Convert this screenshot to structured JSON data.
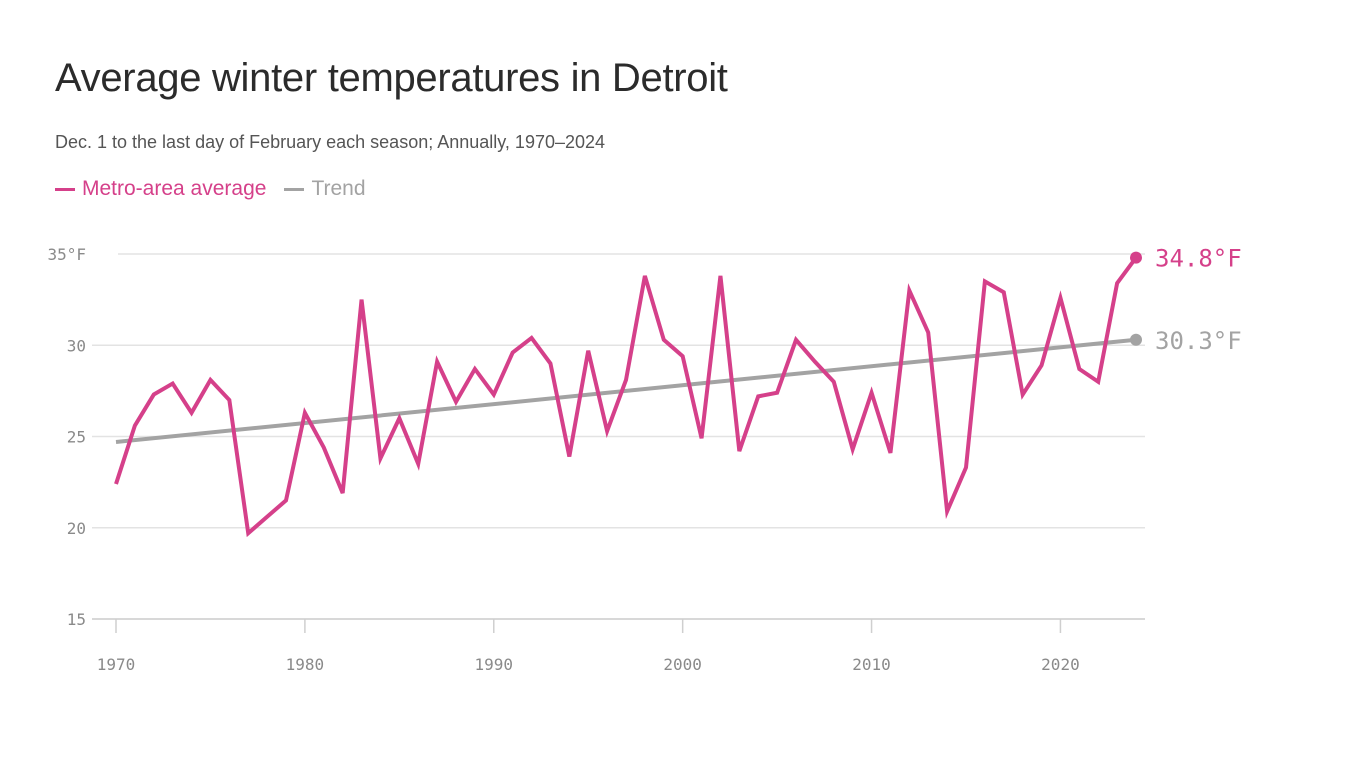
{
  "title": "Average winter temperatures in Detroit",
  "subtitle": "Dec. 1 to the last day of February each season; Annually, 1970–2024",
  "chart_data": {
    "type": "line",
    "title": "Average winter temperatures in Detroit",
    "subtitle": "Dec. 1 to the last day of February each season; Annually, 1970–2024",
    "xlim": [
      1970,
      2024
    ],
    "ylim": [
      15,
      35
    ],
    "grid": true,
    "legend_placement": "top-left",
    "x_ticks": [
      "1970",
      "1980",
      "1990",
      "2000",
      "2010",
      "2020"
    ],
    "y_ticks": [
      "35°F",
      "30",
      "25",
      "20",
      "15"
    ],
    "x": [
      1970,
      1971,
      1972,
      1973,
      1974,
      1975,
      1976,
      1977,
      1978,
      1979,
      1980,
      1981,
      1982,
      1983,
      1984,
      1985,
      1986,
      1987,
      1988,
      1989,
      1990,
      1991,
      1992,
      1993,
      1994,
      1995,
      1996,
      1997,
      1998,
      1999,
      2000,
      2001,
      2002,
      2003,
      2004,
      2005,
      2006,
      2007,
      2008,
      2009,
      2010,
      2011,
      2012,
      2013,
      2014,
      2015,
      2016,
      2017,
      2018,
      2019,
      2020,
      2021,
      2022,
      2023,
      2024
    ],
    "series": [
      {
        "name": "Metro-area average",
        "color": "#d5408a",
        "values": [
          22.4,
          25.6,
          27.3,
          27.9,
          26.3,
          28.1,
          27.0,
          19.7,
          20.6,
          21.5,
          26.3,
          24.4,
          21.9,
          32.5,
          23.8,
          26.0,
          23.5,
          29.1,
          26.9,
          28.7,
          27.3,
          29.6,
          30.4,
          29.0,
          23.9,
          29.7,
          25.3,
          28.1,
          33.8,
          30.3,
          29.4,
          24.9,
          33.8,
          24.2,
          27.2,
          27.4,
          30.3,
          29.1,
          28.0,
          24.3,
          27.4,
          24.1,
          33.0,
          30.7,
          20.9,
          23.3,
          33.5,
          32.9,
          27.3,
          28.9,
          32.6,
          28.7,
          28.0,
          33.4,
          34.8
        ],
        "end_label": "34.8°F"
      },
      {
        "name": "Trend",
        "color": "#a3a3a3",
        "start_value": 24.7,
        "end_value": 30.3,
        "end_label": "30.3°F"
      }
    ]
  }
}
